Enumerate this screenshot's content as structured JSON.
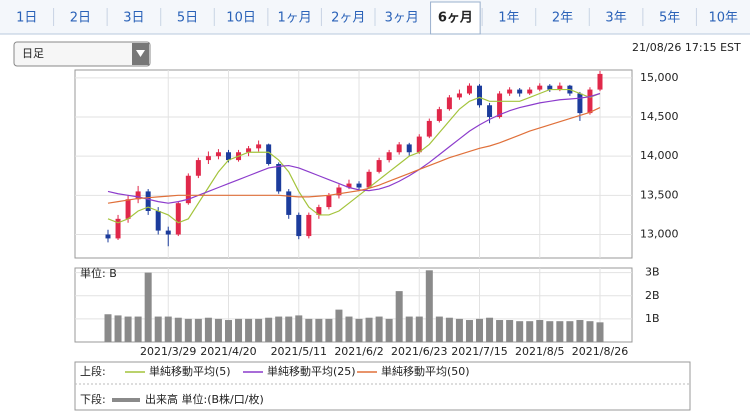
{
  "tabs": [
    {
      "label": "1日"
    },
    {
      "label": "2日"
    },
    {
      "label": "3日"
    },
    {
      "label": "5日"
    },
    {
      "label": "10日"
    },
    {
      "label": "1ヶ月"
    },
    {
      "label": "2ヶ月"
    },
    {
      "label": "3ヶ月"
    },
    {
      "label": "6ヶ月",
      "selected": true
    },
    {
      "label": "1年"
    },
    {
      "label": "2年"
    },
    {
      "label": "3年"
    },
    {
      "label": "5年"
    },
    {
      "label": "10年"
    }
  ],
  "dropdown": "日足",
  "timestamp": "21/08/26 17:15 EST",
  "legend": {
    "upper_label": "上段:",
    "lower_label": "下段:"
  },
  "chart_data": [
    {
      "type": "candlestick",
      "up_color": "#e0284a",
      "down_color": "#1c3c9c",
      "ylim": [
        12700,
        15100
      ],
      "yticks": [
        {
          "value": 13000,
          "label": "13,000"
        },
        {
          "value": 13500,
          "label": "13,500"
        },
        {
          "value": 14000,
          "label": "14,000"
        },
        {
          "value": 14500,
          "label": "14,500"
        },
        {
          "value": 15000,
          "label": "15,000"
        }
      ],
      "candles": [
        [
          13000,
          13060,
          12900,
          12950
        ],
        [
          12950,
          13250,
          12930,
          13200
        ],
        [
          13200,
          13500,
          13150,
          13450
        ],
        [
          13450,
          13620,
          13400,
          13550
        ],
        [
          13550,
          13580,
          13250,
          13300
        ],
        [
          13300,
          13350,
          13000,
          13050
        ],
        [
          13050,
          13100,
          12850,
          13000
        ],
        [
          13000,
          13420,
          12980,
          13400
        ],
        [
          13400,
          13780,
          13380,
          13750
        ],
        [
          13750,
          13980,
          13720,
          13950
        ],
        [
          13950,
          14060,
          13900,
          14000
        ],
        [
          14000,
          14090,
          13960,
          14050
        ],
        [
          14050,
          14080,
          13920,
          13950
        ],
        [
          13950,
          14080,
          13930,
          14050
        ],
        [
          14050,
          14130,
          14000,
          14100
        ],
        [
          14100,
          14200,
          14060,
          14150
        ],
        [
          14150,
          14160,
          13880,
          13900
        ],
        [
          13900,
          13920,
          13520,
          13550
        ],
        [
          13550,
          13580,
          13200,
          13250
        ],
        [
          13250,
          13280,
          12940,
          12980
        ],
        [
          12980,
          13280,
          12950,
          13250
        ],
        [
          13250,
          13380,
          13200,
          13350
        ],
        [
          13350,
          13530,
          13320,
          13500
        ],
        [
          13500,
          13640,
          13460,
          13600
        ],
        [
          13600,
          13700,
          13580,
          13650
        ],
        [
          13650,
          13680,
          13560,
          13600
        ],
        [
          13600,
          13830,
          13590,
          13800
        ],
        [
          13800,
          13980,
          13780,
          13950
        ],
        [
          13950,
          14080,
          13920,
          14050
        ],
        [
          14050,
          14180,
          14020,
          14150
        ],
        [
          14150,
          14170,
          14000,
          14050
        ],
        [
          14050,
          14280,
          14030,
          14250
        ],
        [
          14250,
          14480,
          14230,
          14450
        ],
        [
          14450,
          14630,
          14430,
          14600
        ],
        [
          14600,
          14780,
          14580,
          14750
        ],
        [
          14750,
          14850,
          14720,
          14800
        ],
        [
          14800,
          14930,
          14780,
          14900
        ],
        [
          14900,
          14920,
          14620,
          14650
        ],
        [
          14650,
          14680,
          14420,
          14500
        ],
        [
          14500,
          14830,
          14480,
          14800
        ],
        [
          14800,
          14880,
          14770,
          14850
        ],
        [
          14850,
          14870,
          14760,
          14800
        ],
        [
          14800,
          14880,
          14780,
          14850
        ],
        [
          14850,
          14930,
          14830,
          14900
        ],
        [
          14900,
          14920,
          14820,
          14850
        ],
        [
          14850,
          14940,
          14830,
          14900
        ],
        [
          14900,
          14910,
          14770,
          14800
        ],
        [
          14800,
          14820,
          14450,
          14550
        ],
        [
          14550,
          14880,
          14530,
          14850
        ],
        [
          14850,
          15090,
          14830,
          15050
        ]
      ],
      "series": [
        {
          "name": "単純移動平均(5)",
          "color": "#a4c43c",
          "values": [
            13200,
            13150,
            13200,
            13300,
            13350,
            13300,
            13250,
            13150,
            13200,
            13400,
            13600,
            13800,
            13950,
            14000,
            14050,
            14050,
            14050,
            13950,
            13800,
            13550,
            13350,
            13250,
            13250,
            13300,
            13400,
            13500,
            13600,
            13700,
            13800,
            13900,
            14000,
            14050,
            14150,
            14300,
            14450,
            14600,
            14700,
            14750,
            14700,
            14700,
            14700,
            14700,
            14750,
            14800,
            14850,
            14850,
            14850,
            14800,
            14750,
            14800
          ]
        },
        {
          "name": "単純移動平均(25)",
          "color": "#8c3ccc",
          "values": [
            13550,
            13520,
            13500,
            13480,
            13450,
            13420,
            13400,
            13420,
            13450,
            13500,
            13550,
            13600,
            13650,
            13700,
            13750,
            13800,
            13850,
            13870,
            13880,
            13850,
            13800,
            13750,
            13700,
            13650,
            13600,
            13570,
            13560,
            13580,
            13620,
            13680,
            13750,
            13830,
            13920,
            14020,
            14120,
            14220,
            14320,
            14400,
            14470,
            14530,
            14580,
            14620,
            14650,
            14680,
            14700,
            14720,
            14730,
            14740,
            14760,
            14800
          ]
        },
        {
          "name": "単純移動平均(50)",
          "color": "#e0703a",
          "values": [
            13400,
            13420,
            13440,
            13460,
            13470,
            13480,
            13490,
            13500,
            13500,
            13500,
            13500,
            13500,
            13500,
            13500,
            13500,
            13500,
            13500,
            13500,
            13490,
            13480,
            13480,
            13490,
            13500,
            13520,
            13540,
            13560,
            13590,
            13630,
            13680,
            13730,
            13780,
            13830,
            13880,
            13930,
            13980,
            14020,
            14060,
            14100,
            14130,
            14170,
            14220,
            14270,
            14320,
            14360,
            14400,
            14440,
            14480,
            14520,
            14560,
            14620
          ]
        }
      ]
    },
    {
      "type": "bar",
      "unit_label": "単位: B",
      "ylim": [
        0,
        3.2
      ],
      "yticks": [
        {
          "value": 1,
          "label": "1B"
        },
        {
          "value": 2,
          "label": "2B"
        },
        {
          "value": 3,
          "label": "3B"
        }
      ],
      "categories": [
        null,
        null,
        null,
        null,
        null,
        null,
        "2021/3/29",
        null,
        null,
        null,
        null,
        null,
        "2021/4/20",
        null,
        null,
        null,
        null,
        null,
        null,
        "2021/5/11",
        null,
        null,
        null,
        null,
        null,
        "2021/6/2",
        null,
        null,
        null,
        null,
        null,
        "2021/6/23",
        null,
        null,
        null,
        null,
        null,
        "2021/7/15",
        null,
        null,
        null,
        null,
        null,
        "2021/8/5",
        null,
        null,
        null,
        null,
        null,
        "2021/8/26"
      ],
      "series": [
        {
          "name": "出来高 単位:(B株/口/枚)",
          "color": "#8a8a8a",
          "values": [
            1.2,
            1.15,
            1.1,
            1.1,
            3.0,
            1.1,
            1.1,
            1.05,
            1.0,
            1.0,
            1.05,
            1.0,
            0.95,
            1.0,
            1.0,
            1.0,
            1.05,
            1.1,
            1.1,
            1.15,
            1.0,
            1.0,
            1.0,
            1.4,
            1.1,
            1.0,
            1.05,
            1.1,
            1.0,
            2.2,
            1.1,
            1.1,
            3.1,
            1.1,
            1.05,
            1.0,
            0.95,
            1.0,
            1.05,
            0.95,
            0.95,
            0.9,
            0.9,
            0.95,
            0.9,
            0.9,
            0.9,
            0.95,
            0.9,
            0.85
          ]
        }
      ]
    }
  ]
}
